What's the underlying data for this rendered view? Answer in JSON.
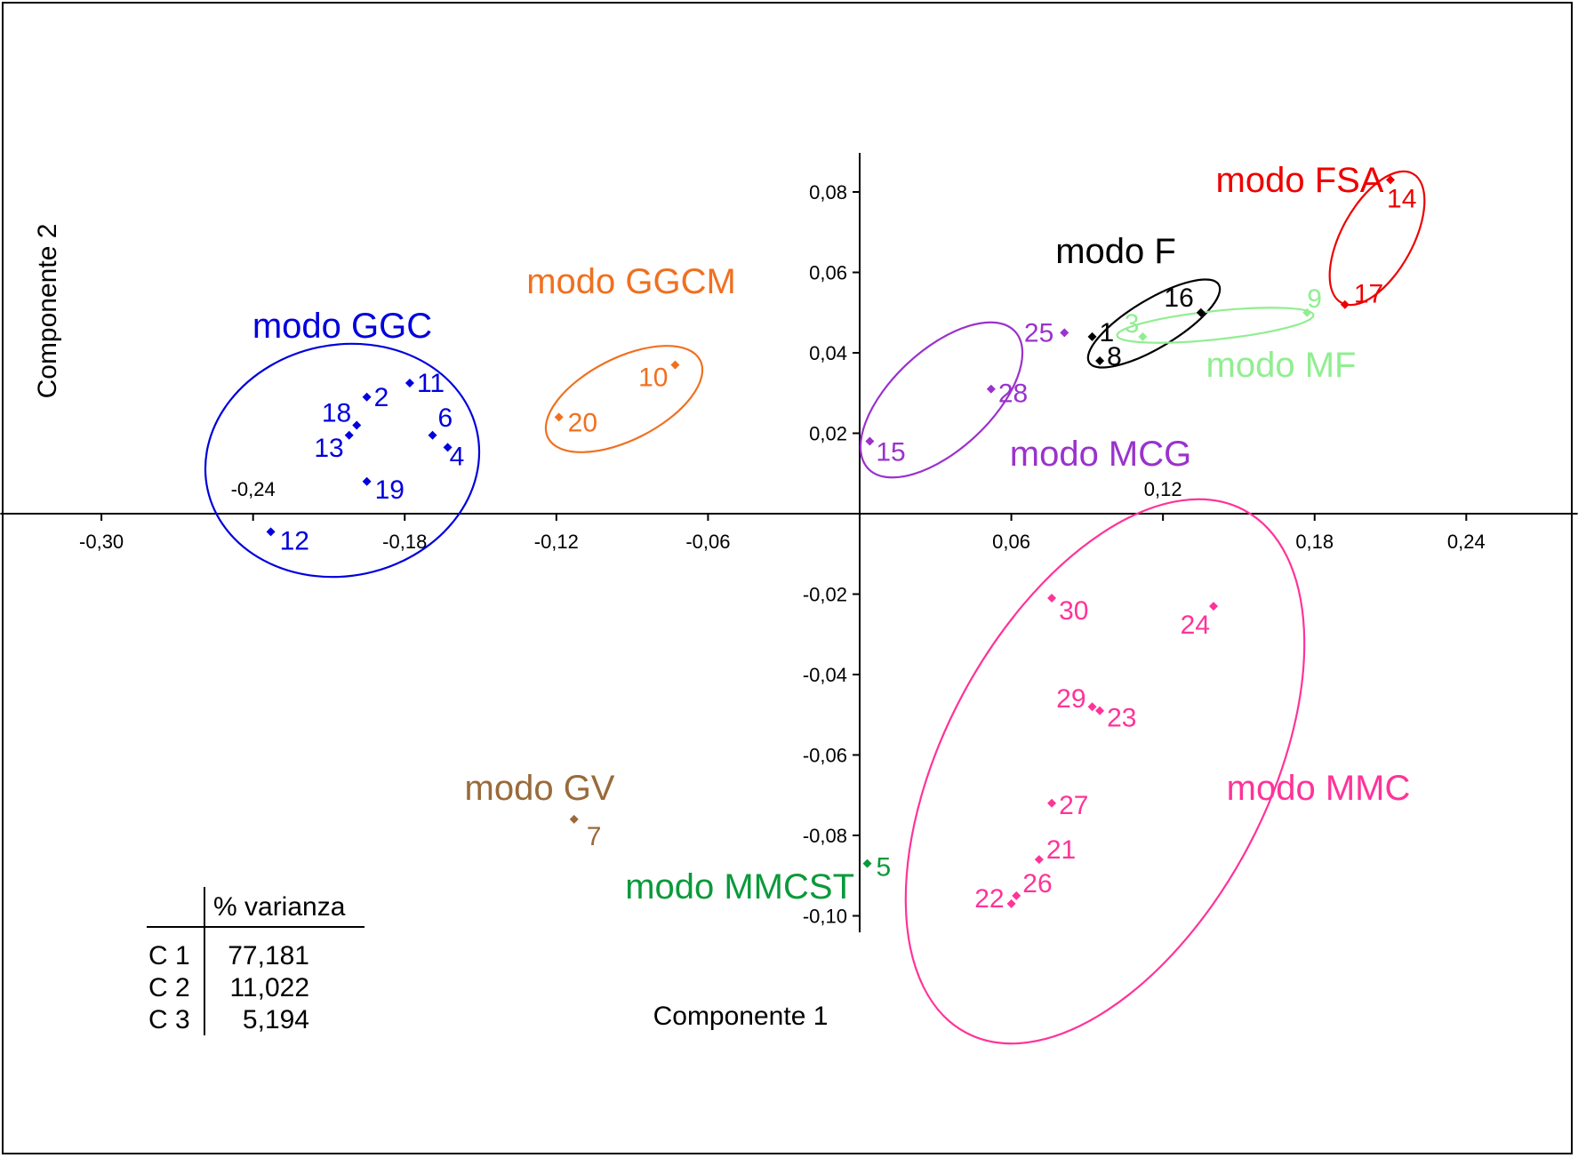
{
  "chart_data": {
    "type": "scatter",
    "title": "",
    "xlabel": "Componente 1",
    "ylabel": "Componente 2",
    "xlim": [
      -0.34,
      0.27
    ],
    "ylim": [
      -0.103,
      0.09
    ],
    "x_ticks": [
      {
        "value": -0.3,
        "label": "-0,30"
      },
      {
        "value": -0.24,
        "label": "-0,24"
      },
      {
        "value": -0.18,
        "label": "-0,18"
      },
      {
        "value": -0.12,
        "label": "-0,12"
      },
      {
        "value": -0.06,
        "label": "-0,06"
      },
      {
        "value": 0.06,
        "label": "0,06"
      },
      {
        "value": 0.12,
        "label": "0,12"
      },
      {
        "value": 0.18,
        "label": "0,18"
      },
      {
        "value": 0.24,
        "label": "0,24"
      }
    ],
    "y_ticks": [
      {
        "value": 0.08,
        "label": "0,08"
      },
      {
        "value": 0.06,
        "label": "0,06"
      },
      {
        "value": 0.04,
        "label": "0,04"
      },
      {
        "value": 0.02,
        "label": "0,02"
      },
      {
        "value": -0.02,
        "label": "-0,02"
      },
      {
        "value": -0.04,
        "label": "-0,04"
      },
      {
        "value": -0.06,
        "label": "-0,06"
      },
      {
        "value": -0.08,
        "label": "-0,08"
      },
      {
        "value": -0.1,
        "label": "-0,10"
      }
    ],
    "series": [
      {
        "name": "modo GGC",
        "color": "#0000dd",
        "points": [
          {
            "id": "2",
            "x": -0.195,
            "y": 0.029
          },
          {
            "id": "11",
            "x": -0.178,
            "y": 0.0325
          },
          {
            "id": "18",
            "x": -0.199,
            "y": 0.022
          },
          {
            "id": "13",
            "x": -0.202,
            "y": 0.0195
          },
          {
            "id": "6",
            "x": -0.169,
            "y": 0.0195
          },
          {
            "id": "4",
            "x": -0.163,
            "y": 0.0165
          },
          {
            "id": "19",
            "x": -0.195,
            "y": 0.008
          },
          {
            "id": "12",
            "x": -0.233,
            "y": -0.0045
          }
        ]
      },
      {
        "name": "modo GGCM",
        "color": "#f07020",
        "points": [
          {
            "id": "10",
            "x": -0.073,
            "y": 0.037
          },
          {
            "id": "20",
            "x": -0.119,
            "y": 0.024
          }
        ]
      },
      {
        "name": "modo GV",
        "color": "#9a6a3a",
        "points": [
          {
            "id": "7",
            "x": -0.113,
            "y": -0.076
          }
        ]
      },
      {
        "name": "modo MMCST",
        "color": "#0a9a3a",
        "points": [
          {
            "id": "5",
            "x": 0.003,
            "y": -0.087
          }
        ]
      },
      {
        "name": "modo MCG",
        "color": "#9a32cd",
        "points": [
          {
            "id": "25",
            "x": 0.081,
            "y": 0.045
          },
          {
            "id": "28",
            "x": 0.052,
            "y": 0.031
          },
          {
            "id": "15",
            "x": 0.004,
            "y": 0.018
          }
        ]
      },
      {
        "name": "modo F",
        "color": "#000000",
        "points": [
          {
            "id": "16",
            "x": 0.135,
            "y": 0.05
          },
          {
            "id": "1",
            "x": 0.092,
            "y": 0.044
          },
          {
            "id": "8",
            "x": 0.095,
            "y": 0.038
          }
        ]
      },
      {
        "name": "modo MF",
        "color": "#90ee90",
        "points": [
          {
            "id": "3",
            "x": 0.112,
            "y": 0.044
          },
          {
            "id": "9",
            "x": 0.177,
            "y": 0.05
          }
        ]
      },
      {
        "name": "modo FSA",
        "color": "#ee0000",
        "points": [
          {
            "id": "14",
            "x": 0.21,
            "y": 0.083
          },
          {
            "id": "17",
            "x": 0.192,
            "y": 0.052
          }
        ]
      },
      {
        "name": "modo MMC",
        "color": "#ff3399",
        "points": [
          {
            "id": "30",
            "x": 0.076,
            "y": -0.021
          },
          {
            "id": "24",
            "x": 0.14,
            "y": -0.023
          },
          {
            "id": "29",
            "x": 0.092,
            "y": -0.048
          },
          {
            "id": "23",
            "x": 0.095,
            "y": -0.049
          },
          {
            "id": "27",
            "x": 0.076,
            "y": -0.072
          },
          {
            "id": "21",
            "x": 0.071,
            "y": -0.086
          },
          {
            "id": "26",
            "x": 0.062,
            "y": -0.095
          },
          {
            "id": "22",
            "x": 0.06,
            "y": -0.097
          }
        ]
      }
    ]
  },
  "variance_table": {
    "header": "% varianza",
    "rows": [
      {
        "component": "C 1",
        "value": "77,181"
      },
      {
        "component": "C 2",
        "value": "11,022"
      },
      {
        "component": "C 3",
        "value": "5,194"
      }
    ]
  }
}
